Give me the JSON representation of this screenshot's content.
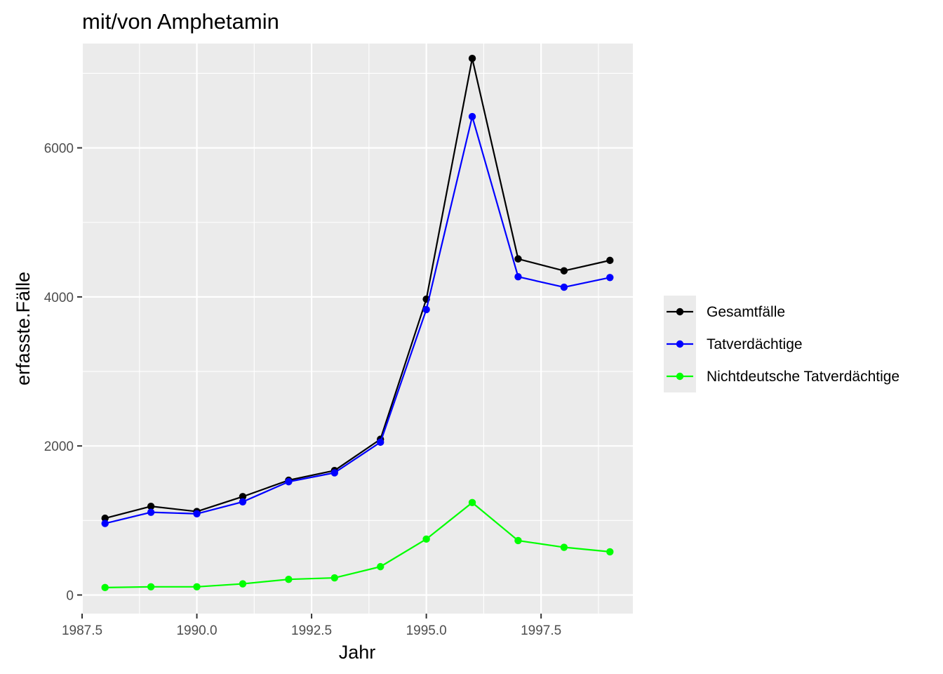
{
  "chart_data": {
    "type": "line",
    "title": "mit/von Amphetamin",
    "xlabel": "Jahr",
    "ylabel": "erfasste.Fälle",
    "xlim": [
      1987.5,
      1999.5
    ],
    "ylim": [
      -250,
      7400
    ],
    "x_ticks": [
      1987.5,
      1990.0,
      1992.5,
      1995.0,
      1997.5
    ],
    "x_tick_labels": [
      "1987.5",
      "1990.0",
      "1992.5",
      "1995.0",
      "1997.5"
    ],
    "y_ticks": [
      0,
      2000,
      4000,
      6000
    ],
    "y_tick_labels": [
      "0",
      "2000",
      "4000",
      "6000"
    ],
    "grid": true,
    "legend_position": "right",
    "x": [
      1988,
      1989,
      1990,
      1991,
      1992,
      1993,
      1994,
      1995,
      1996,
      1997,
      1998,
      1999
    ],
    "series": [
      {
        "name": "Gesamtfälle",
        "color": "#000000",
        "values": [
          1030,
          1190,
          1120,
          1320,
          1540,
          1670,
          2090,
          3970,
          7200,
          4510,
          4350,
          4490
        ]
      },
      {
        "name": "Tatverdächtige",
        "color": "#0000ff",
        "values": [
          960,
          1110,
          1090,
          1250,
          1520,
          1640,
          2050,
          3830,
          6420,
          4270,
          4130,
          4260
        ]
      },
      {
        "name": "Nichtdeutsche Tatverdächtige",
        "color": "#00ff00",
        "values": [
          100,
          110,
          110,
          150,
          210,
          230,
          380,
          750,
          1240,
          730,
          640,
          580
        ]
      }
    ]
  }
}
